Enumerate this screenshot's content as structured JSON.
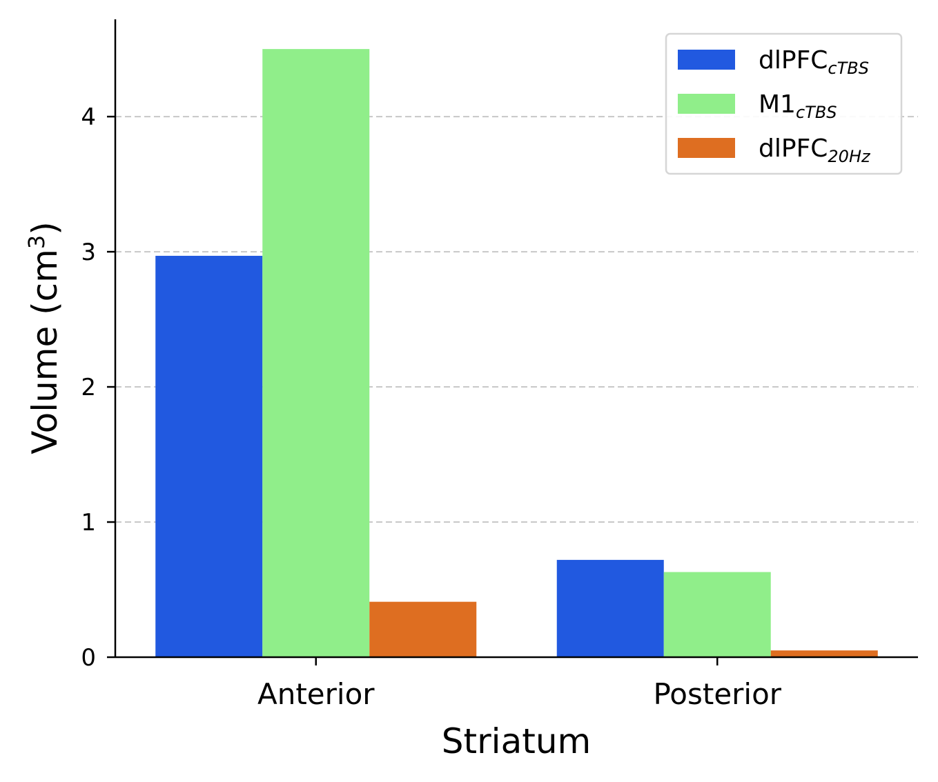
{
  "chart_data": {
    "type": "bar",
    "categories": [
      "Anterior",
      "Posterior"
    ],
    "series": [
      {
        "name": "dlPFC",
        "subscript": "cTBS",
        "color": "#2159e0",
        "values": [
          2.97,
          0.72
        ]
      },
      {
        "name": "M1",
        "subscript": "cTBS",
        "color": "#90ee8a",
        "values": [
          4.5,
          0.63
        ]
      },
      {
        "name": "dlPFC",
        "subscript": "20Hz",
        "color": "#de6e21",
        "values": [
          0.41,
          0.05
        ]
      }
    ],
    "xlabel": "Striatum",
    "ylabel": "Volume (cm",
    "ylabel_superscript": "3",
    "ylabel_close": ")",
    "ylim": [
      0,
      4.72
    ],
    "yticks": [
      0,
      1,
      2,
      3,
      4
    ],
    "ytick_labels": [
      "0",
      "1",
      "2",
      "3",
      "4"
    ],
    "grid": "y-dashed",
    "legend_position": "top-right"
  }
}
